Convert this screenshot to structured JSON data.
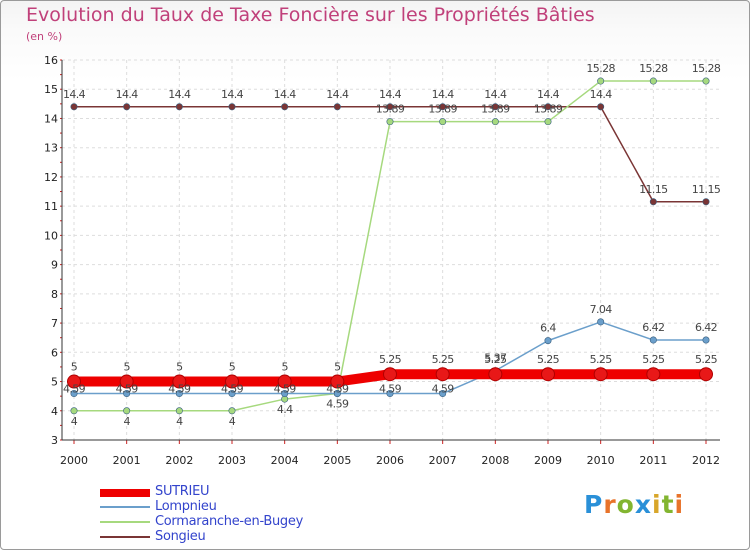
{
  "title": "Evolution du Taux de Taxe Foncière sur les Propriétés Bâties",
  "unit": "(en %)",
  "logo": {
    "text": "Proxiti",
    "letters": [
      "P",
      "r",
      "o",
      "x",
      "i",
      "t",
      "i"
    ]
  },
  "chart_data": {
    "type": "line",
    "title": "Evolution du Taux de Taxe Foncière sur les Propriétés Bâties",
    "ylabel": "(en %)",
    "xlabel": "",
    "ylim": [
      3,
      16
    ],
    "yticks": [
      "3",
      "4",
      "5",
      "6",
      "7",
      "8",
      "9",
      "10",
      "11",
      "12",
      "13",
      "14",
      "15",
      "16"
    ],
    "categories": [
      "2000",
      "2001",
      "2002",
      "2003",
      "2004",
      "2005",
      "2006",
      "2007",
      "2008",
      "2009",
      "2010",
      "2011",
      "2012"
    ],
    "grid": true,
    "legend_position": "bottom-left",
    "series": [
      {
        "name": "SUTRIEU",
        "color": "#ee0000",
        "emphasis": true,
        "values": [
          5,
          5,
          5,
          5,
          5,
          5,
          5.25,
          5.25,
          5.25,
          5.25,
          5.25,
          5.25,
          5.25
        ],
        "labels": [
          "5",
          "5",
          "5",
          "5",
          "5",
          "5",
          "5.25",
          "5.25",
          "5.25",
          "5.25",
          "5.25",
          "5.25",
          "5.25"
        ]
      },
      {
        "name": "Lompnieu",
        "color": "#6b9fcb",
        "emphasis": false,
        "values": [
          4.59,
          4.59,
          4.59,
          4.59,
          4.59,
          4.59,
          4.59,
          4.59,
          5.37,
          6.4,
          7.04,
          6.42,
          6.42
        ],
        "labels": [
          "4.59",
          "4.59",
          "4.59",
          "4.59",
          "4.59",
          "4.59",
          "4.59",
          "4.59",
          "5.37",
          "6.4",
          "7.04",
          "6.42",
          "6.42"
        ]
      },
      {
        "name": "Cormaranche-en-Bugey",
        "color": "#a6d97e",
        "emphasis": false,
        "values": [
          4,
          4,
          4,
          4,
          4.4,
          4.59,
          13.89,
          13.89,
          13.89,
          13.89,
          15.28,
          15.28,
          15.28
        ],
        "labels": [
          "4",
          "4",
          "4",
          "4",
          "4.4",
          "4.59",
          "13.89",
          "13.89",
          "13.89",
          "13.89",
          "15.28",
          "15.28",
          "15.28"
        ]
      },
      {
        "name": "Songieu",
        "color": "#7a3535",
        "emphasis": false,
        "values": [
          14.4,
          14.4,
          14.4,
          14.4,
          14.4,
          14.4,
          14.4,
          14.4,
          14.4,
          14.4,
          14.4,
          11.15,
          11.15
        ],
        "labels": [
          "14.4",
          "14.4",
          "14.4",
          "14.4",
          "14.4",
          "14.4",
          "14.4",
          "14.4",
          "14.4",
          "14.4",
          "14.4",
          "11.15",
          "11.15"
        ]
      }
    ]
  }
}
